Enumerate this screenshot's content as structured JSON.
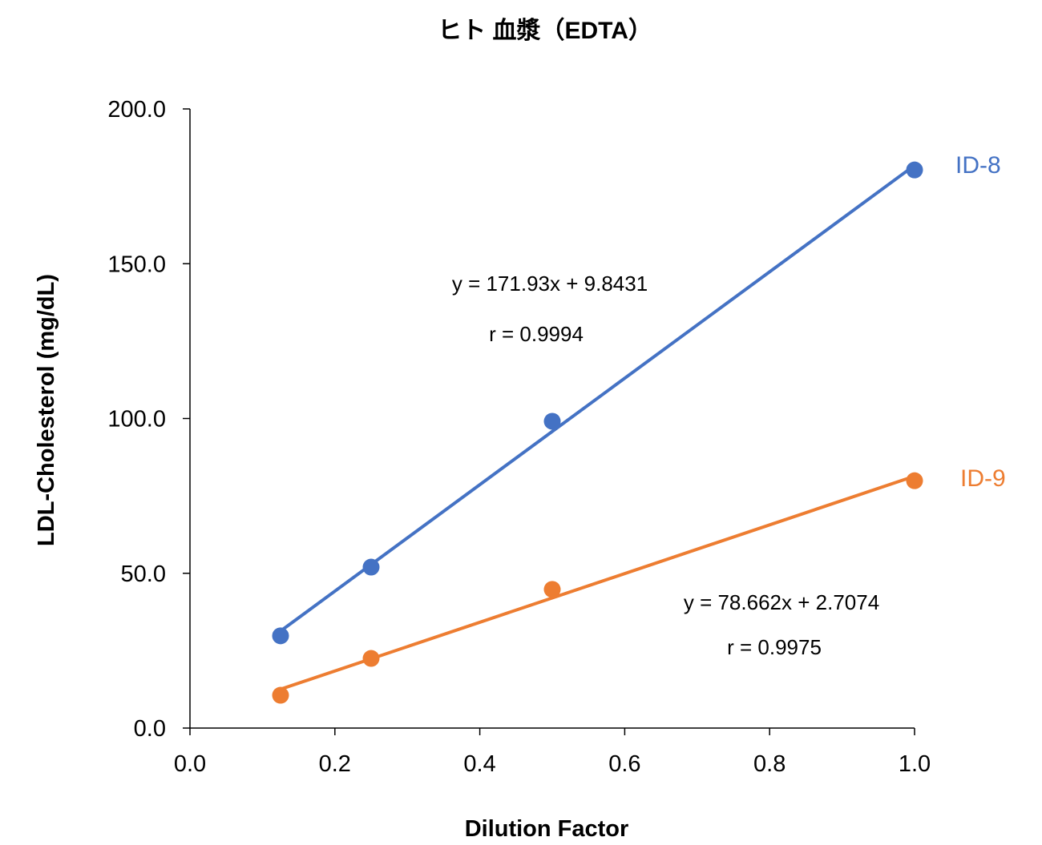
{
  "chart_data": {
    "type": "scatter",
    "title": "ヒト 血漿（EDTA）",
    "xlabel": "Dilution Factor",
    "ylabel": "LDL-Cholesterol (mg/dL)",
    "xlim": [
      0,
      1.0
    ],
    "ylim": [
      0,
      200
    ],
    "xticks": [
      "0.0",
      "0.2",
      "0.4",
      "0.6",
      "0.8",
      "1.0"
    ],
    "yticks": [
      "0.0",
      "50.0",
      "100.0",
      "150.0",
      "200.0"
    ],
    "grid": false,
    "legend": "inline-right",
    "series": [
      {
        "name": "ID-8",
        "color": "#4472C4",
        "x": [
          0.125,
          0.25,
          0.5,
          1.0
        ],
        "y": [
          29.8,
          52.0,
          99.1,
          180.3
        ],
        "trendline": {
          "slope": 171.93,
          "intercept": 9.8431,
          "equation": "y = 171.93x + 9.8431",
          "r": "r = 0.9994"
        }
      },
      {
        "name": "ID-9",
        "color": "#ED7D31",
        "x": [
          0.125,
          0.25,
          0.5,
          1.0
        ],
        "y": [
          10.6,
          22.5,
          44.8,
          79.9
        ],
        "trendline": {
          "slope": 78.662,
          "intercept": 2.7074,
          "equation": "y = 78.662x + 2.7074",
          "r": "r = 0.9975"
        }
      }
    ]
  }
}
